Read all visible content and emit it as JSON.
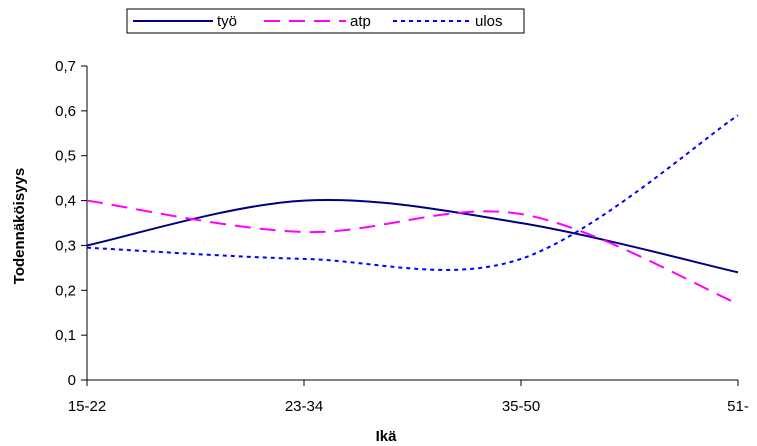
{
  "chart_data": {
    "type": "line",
    "categories": [
      "15-22",
      "23-34",
      "35-50",
      "51-"
    ],
    "xlabel": "Ikä",
    "ylabel": "Todennäköisyys",
    "ylim": [
      0,
      0.7
    ],
    "yticks": [
      "0",
      "0,1",
      "0,2",
      "0,3",
      "0,4",
      "0,5",
      "0,6",
      "0,7"
    ],
    "grid": false,
    "smooth": true,
    "legend_position": "top",
    "series": [
      {
        "name": "työ",
        "values": [
          0.3,
          0.4,
          0.35,
          0.24
        ],
        "color": "#000080",
        "dash": "solid"
      },
      {
        "name": "atp",
        "values": [
          0.4,
          0.33,
          0.37,
          0.17
        ],
        "color": "#ff00ff",
        "dash": "dashed"
      },
      {
        "name": "ulos",
        "values": [
          0.295,
          0.27,
          0.27,
          0.59
        ],
        "color": "#0000ff",
        "dash": "dotted"
      }
    ]
  }
}
